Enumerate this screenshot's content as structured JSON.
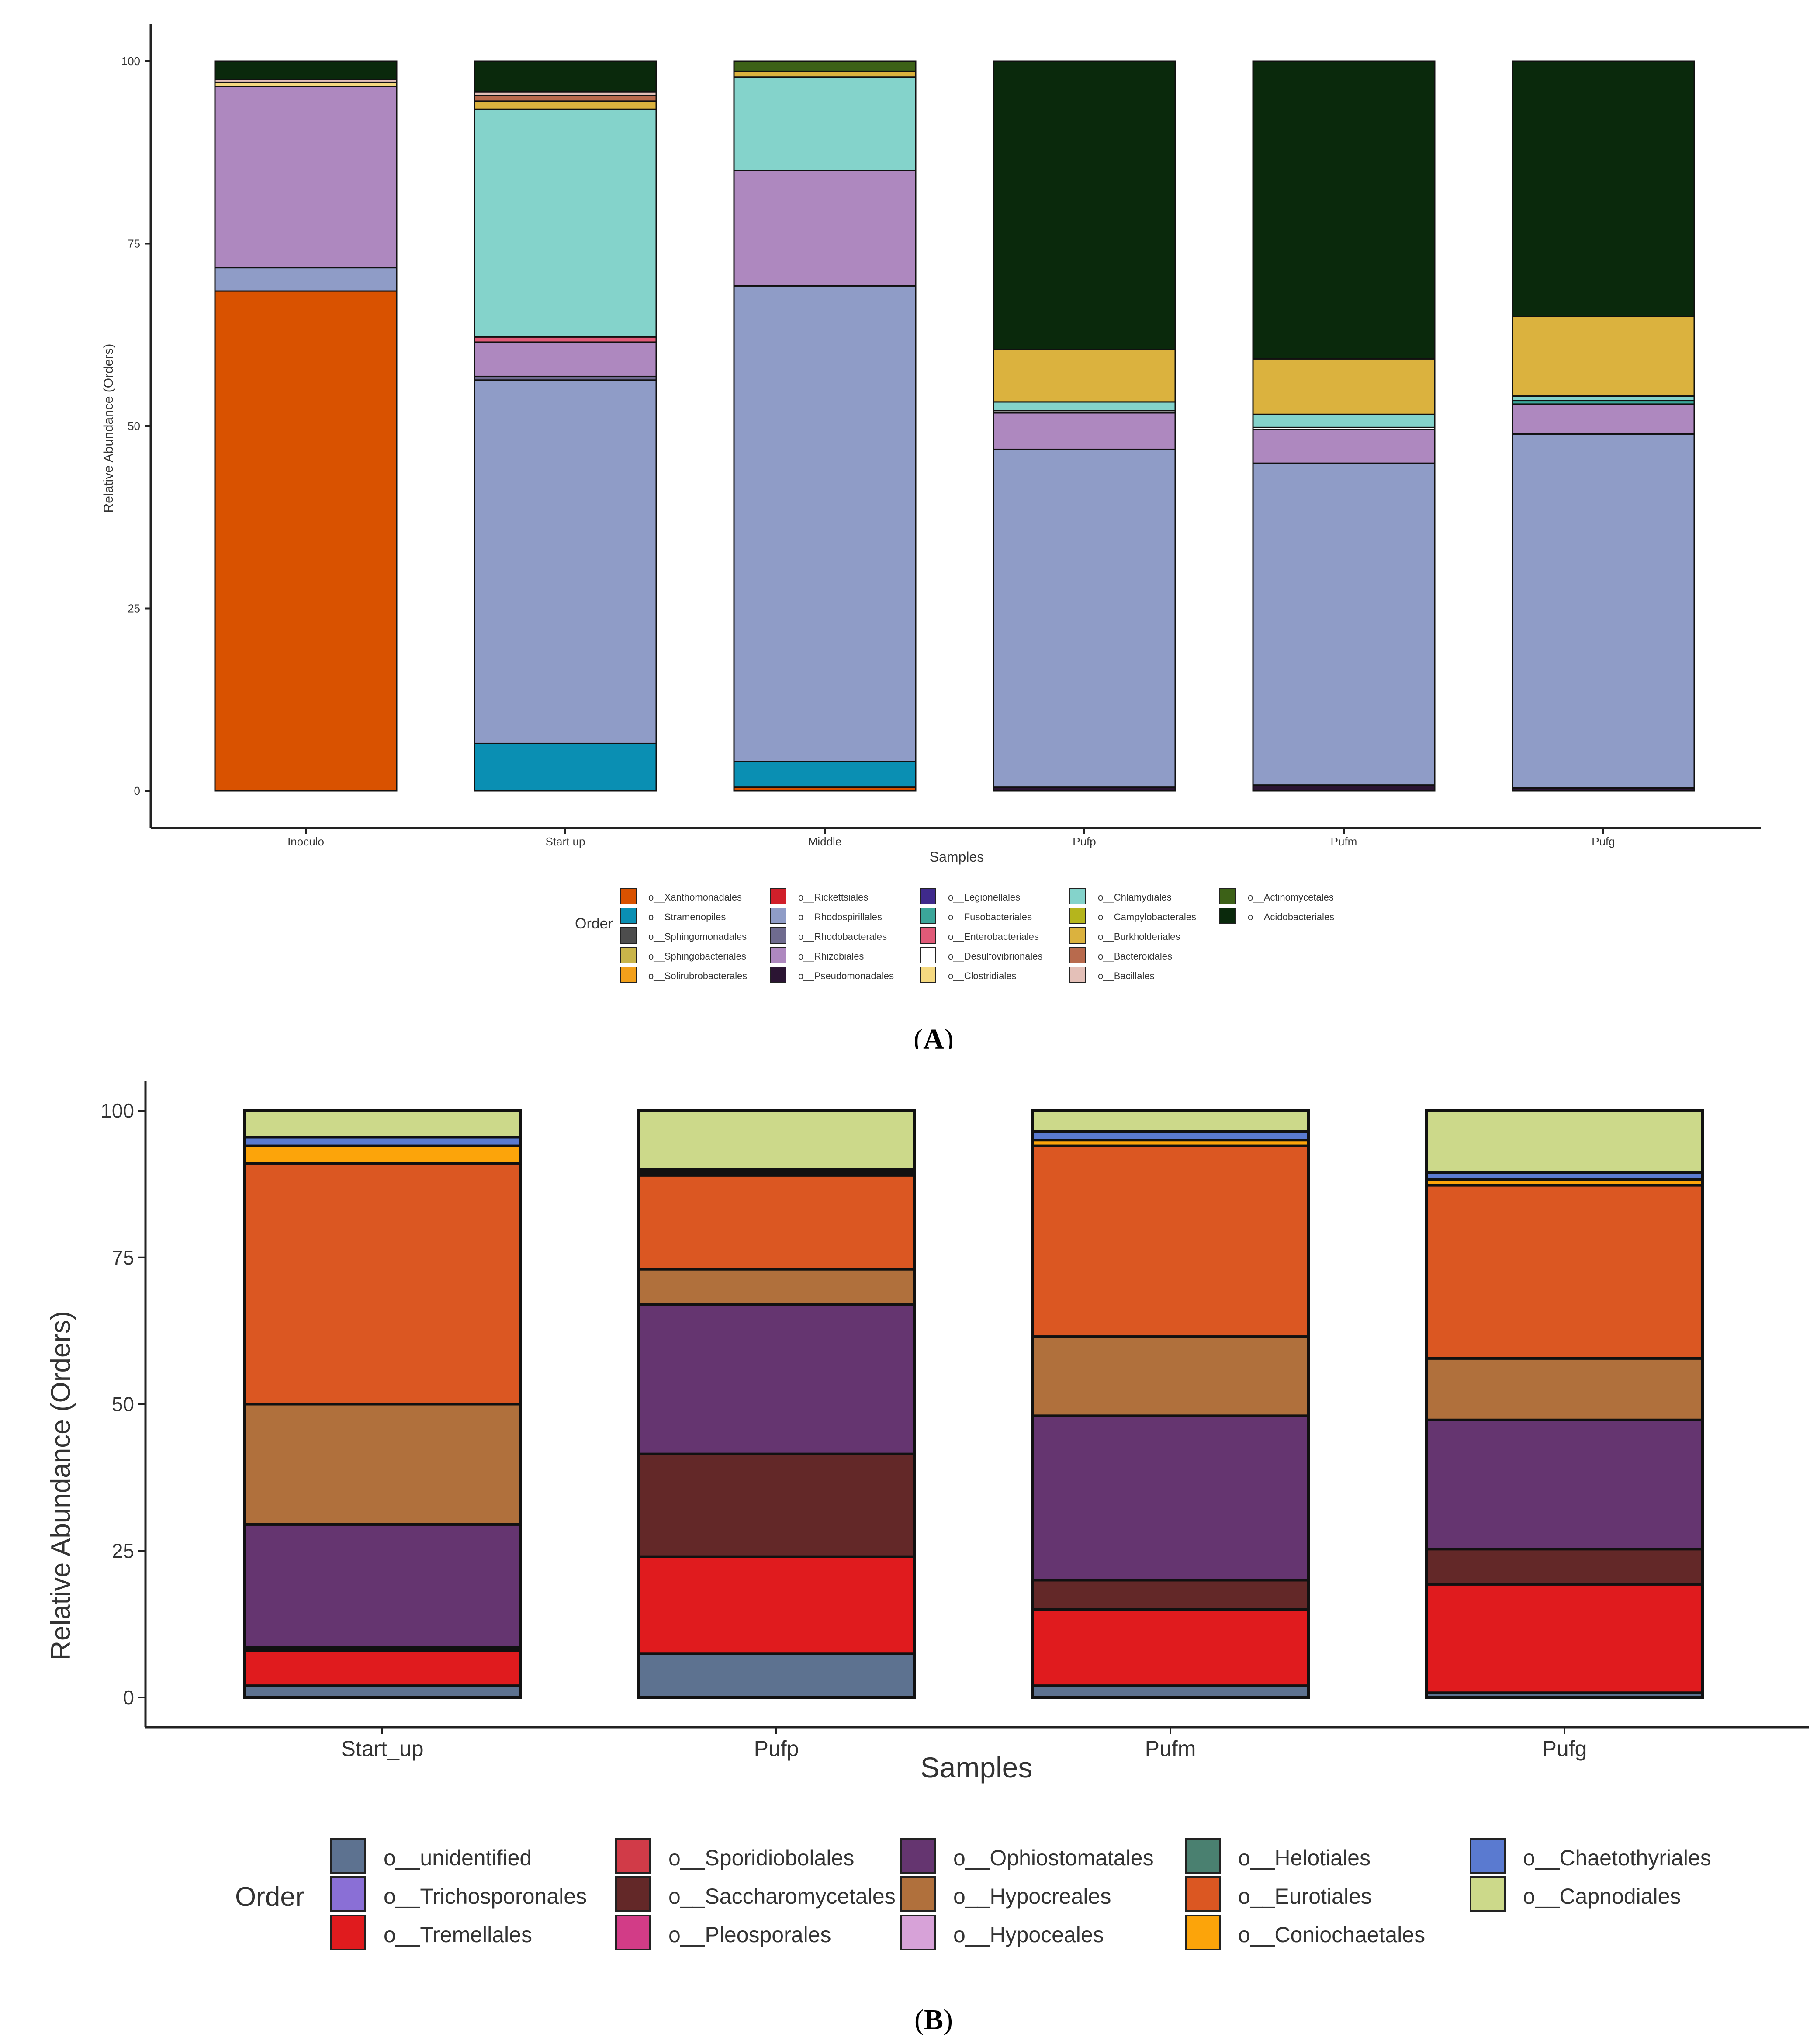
{
  "chart_data": [
    {
      "panel": "A",
      "type": "bar",
      "stacked": true,
      "xlabel": "Samples",
      "ylabel": "Relative Abundance (Orders)",
      "ylim": [
        0,
        100
      ],
      "yticks": [
        0,
        25,
        50,
        75,
        100
      ],
      "categories": [
        "Inoculo",
        "Start up",
        "Middle",
        "Pufp",
        "Pufm",
        "Pufg"
      ],
      "legend_title": "Order",
      "legend_placement": "bottom",
      "legend": [
        {
          "name": "o__Xanthomonadales",
          "color": "#d95200"
        },
        {
          "name": "o__Stramenopiles",
          "color": "#0a8fb3"
        },
        {
          "name": "o__Sphingomonadales",
          "color": "#4d4d4d"
        },
        {
          "name": "o__Sphingobacteriales",
          "color": "#c9b54a"
        },
        {
          "name": "o__Solirubrobacterales",
          "color": "#f2a01b"
        },
        {
          "name": "o__Rickettsiales",
          "color": "#d11f2a"
        },
        {
          "name": "o__Rhodospirillales",
          "color": "#8f9cc7"
        },
        {
          "name": "o__Rhodobacterales",
          "color": "#6f6b8f"
        },
        {
          "name": "o__Rhizobiales",
          "color": "#ae88bf"
        },
        {
          "name": "o__Pseudomonadales",
          "color": "#2b1533"
        },
        {
          "name": "o__Legionellales",
          "color": "#3f2a8c"
        },
        {
          "name": "o__Fusobacteriales",
          "color": "#3ba69a"
        },
        {
          "name": "o__Enterobacteriales",
          "color": "#e05a78"
        },
        {
          "name": "o__Desulfovibrionales",
          "color": "#ffffff"
        },
        {
          "name": "o__Clostridiales",
          "color": "#f5d980"
        },
        {
          "name": "o__Chlamydiales",
          "color": "#84d3cb"
        },
        {
          "name": "o__Campylobacterales",
          "color": "#b5b51c"
        },
        {
          "name": "o__Burkholderiales",
          "color": "#dbb23e"
        },
        {
          "name": "o__Bacteroidales",
          "color": "#b86a4d"
        },
        {
          "name": "o__Bacillales",
          "color": "#e4c0b8"
        },
        {
          "name": "o__Actinomycetales",
          "color": "#3c6117"
        },
        {
          "name": "o__Acidobacteriales",
          "color": "#0a290c"
        }
      ],
      "series": [
        {
          "name": "o__Xanthomonadales",
          "values": [
            68.5,
            0,
            0.5,
            0,
            0,
            0
          ]
        },
        {
          "name": "o__Stramenopiles",
          "values": [
            0,
            6.5,
            3.5,
            0,
            0,
            0
          ]
        },
        {
          "name": "o__Pseudomonadales",
          "values": [
            0,
            0,
            0,
            0.5,
            0.8,
            0.4
          ]
        },
        {
          "name": "o__Rhodospirillales",
          "values": [
            3.2,
            49.8,
            65.2,
            46.3,
            44.1,
            48.5
          ]
        },
        {
          "name": "o__Rhodobacterales",
          "values": [
            0,
            0.5,
            0,
            0,
            0,
            0
          ]
        },
        {
          "name": "o__Rhizobiales",
          "values": [
            24.8,
            4.7,
            15.8,
            5.0,
            4.6,
            4.1
          ]
        },
        {
          "name": "o__Enterobacteriales",
          "values": [
            0,
            0.7,
            0,
            0,
            0,
            0
          ]
        },
        {
          "name": "o__Desulfovibrionales",
          "values": [
            0,
            0,
            0,
            0.3,
            0.3,
            0
          ]
        },
        {
          "name": "o__Fusobacteriales",
          "values": [
            0,
            0,
            0,
            0,
            0,
            0.5
          ]
        },
        {
          "name": "o__Chlamydiales",
          "values": [
            0,
            31.2,
            12.8,
            1.2,
            1.8,
            0.6
          ]
        },
        {
          "name": "o__Burkholderiales",
          "values": [
            0,
            1.1,
            0.8,
            7.2,
            7.6,
            10.9
          ]
        },
        {
          "name": "o__Clostridiales",
          "values": [
            0.6,
            0,
            0,
            0,
            0,
            0
          ]
        },
        {
          "name": "o__Bacteroidales",
          "values": [
            0,
            0.8,
            0,
            0,
            0,
            0
          ]
        },
        {
          "name": "o__Bacillales",
          "values": [
            0.4,
            0.5,
            0,
            0,
            0,
            0
          ]
        },
        {
          "name": "o__Actinomycetales",
          "values": [
            0,
            0,
            1.4,
            0,
            0,
            0
          ]
        },
        {
          "name": "o__Acidobacteriales",
          "values": [
            2.5,
            4.2,
            0,
            39.5,
            40.8,
            35.0
          ]
        }
      ]
    },
    {
      "panel": "B",
      "type": "bar",
      "stacked": true,
      "xlabel": "Samples",
      "ylabel": "Relative Abundance (Orders)",
      "ylim": [
        0,
        100
      ],
      "yticks": [
        0,
        25,
        50,
        75,
        100
      ],
      "categories": [
        "Start_up",
        "Pufp",
        "Pufm",
        "Pufg"
      ],
      "legend_title": "Order",
      "legend_placement": "bottom",
      "legend": [
        {
          "name": "o__unidentified",
          "color": "#5d7290"
        },
        {
          "name": "o__Trichosporonales",
          "color": "#8a6fd6"
        },
        {
          "name": "o__Tremellales",
          "color": "#e01b1e"
        },
        {
          "name": "o__Sporidiobolales",
          "color": "#d13b48"
        },
        {
          "name": "o__Saccharomycetales",
          "color": "#632828"
        },
        {
          "name": "o__Pleosporales",
          "color": "#d23c87"
        },
        {
          "name": "o__Ophiostomatales",
          "color": "#653570"
        },
        {
          "name": "o__Hypocreales",
          "color": "#b0703c"
        },
        {
          "name": "o__Hypoceales",
          "color": "#d7a2d8"
        },
        {
          "name": "o__Helotiales",
          "color": "#4a8070"
        },
        {
          "name": "o__Eurotiales",
          "color": "#db5722"
        },
        {
          "name": "o__Coniochaetales",
          "color": "#fca40a"
        },
        {
          "name": "o__Chaetothyriales",
          "color": "#5a7ad0"
        },
        {
          "name": "o__Capnodiales",
          "color": "#ccd98a"
        }
      ],
      "series": [
        {
          "name": "o__unidentified",
          "values": [
            2.0,
            7.5,
            2.0,
            0.8
          ]
        },
        {
          "name": "o__Tremellales",
          "values": [
            6.0,
            16.5,
            13.0,
            18.5
          ]
        },
        {
          "name": "o__Saccharomycetales",
          "values": [
            0.5,
            17.5,
            5.0,
            6.0
          ]
        },
        {
          "name": "o__Ophiostomatales",
          "values": [
            21.0,
            25.5,
            28.0,
            22.0
          ]
        },
        {
          "name": "o__Hypocreales",
          "values": [
            20.5,
            6.0,
            13.5,
            10.5
          ]
        },
        {
          "name": "o__Eurotiales",
          "values": [
            41.0,
            16.0,
            32.5,
            29.5
          ]
        },
        {
          "name": "o__Hypoceales",
          "values": [
            0,
            0,
            0,
            0
          ]
        },
        {
          "name": "o__Coniochaetales",
          "values": [
            3.0,
            0.5,
            1.0,
            1.0
          ]
        },
        {
          "name": "o__Chaetothyriales",
          "values": [
            1.5,
            0.5,
            1.5,
            1.2
          ]
        },
        {
          "name": "o__Capnodiales",
          "values": [
            4.5,
            10.0,
            3.5,
            10.5
          ]
        }
      ]
    }
  ],
  "panel_labels": {
    "a": "A",
    "b": "B"
  }
}
